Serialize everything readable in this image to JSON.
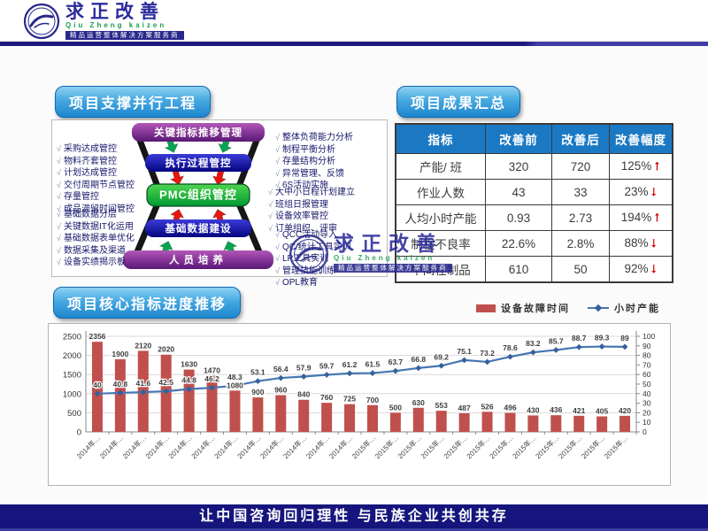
{
  "header": {
    "brand_cn": "求正改善",
    "brand_en": "Qiu Zheng kaizen",
    "tagline": "精品运营整体解决方案服务商"
  },
  "left_panel": {
    "title": "项目支撑并行工程",
    "levels": [
      "关键指标推移管理",
      "执行过程管控",
      "PMC组织管控",
      "基础数据建设",
      "人员培养"
    ],
    "checklists": {
      "top_left": [
        "采购达成管控",
        "物料齐套管控",
        "计划达成管控",
        "交付周期节点管控",
        "存量管控",
        "成品滞留时间管控"
      ],
      "bottom_left": [
        "基础数据分层",
        "关键数据IT化运用",
        "基础数据表单优化",
        "数据采集及渠道",
        "设备实绩揭示板"
      ],
      "right_top": [
        "整体负荷能力分析",
        "制程平衡分析",
        "存量结构分析",
        "异常管理、反馈",
        "6S活动实施"
      ],
      "right_middle": [
        "大中小日程计划建立",
        "班组日报管理",
        "设备效率管控",
        "订单组织、评审"
      ],
      "right_bottom": [
        "QCC活动导入",
        "QC/统计工具实训",
        "LP工具实训",
        "管理技能训练",
        "OPL教育"
      ]
    }
  },
  "right_panel": {
    "title": "项目成果汇总",
    "table": {
      "headers": [
        "指标",
        "改善前",
        "改善后",
        "改善幅度"
      ],
      "rows": [
        {
          "name": "产能/ 班",
          "before": "320",
          "after": "720",
          "delta": "125%",
          "dir": "up"
        },
        {
          "name": "作业人数",
          "before": "43",
          "after": "33",
          "delta": "23%",
          "dir": "down"
        },
        {
          "name": "人均小时产能",
          "before": "0.93",
          "after": "2.73",
          "delta": "194%",
          "dir": "up"
        },
        {
          "name": "制程不良率",
          "before": "22.6%",
          "after": "2.8%",
          "delta": "88%",
          "dir": "down"
        },
        {
          "name": "中间在制品",
          "before": "610",
          "after": "50",
          "delta": "92%",
          "dir": "down"
        }
      ]
    }
  },
  "chart_section": {
    "title": "项目核心指标进度推移",
    "legend": [
      {
        "label": "设备故障时间",
        "type": "bar",
        "color": "#c0504d"
      },
      {
        "label": "小时产能",
        "type": "line",
        "color": "#4677b2"
      }
    ]
  },
  "chart_data": {
    "type": "bar",
    "note": "combo bar+line, bars on left axis, line on right axis",
    "categories": [
      "2014年…",
      "2014年…",
      "2014年…",
      "2014年…",
      "2014年…",
      "2014年…",
      "2014年…",
      "2014年…",
      "2014年…",
      "2014年…",
      "2014年…",
      "2014年…",
      "2015年…",
      "2015年…",
      "2015年…",
      "2015年…",
      "2015年…",
      "2015年…",
      "2015年…",
      "2015年…",
      "2015年…",
      "2015年…",
      "2015年…",
      "2015年…"
    ],
    "series": [
      {
        "name": "设备故障时间",
        "type": "bar",
        "axis": "left",
        "color": "#c0504d",
        "values": [
          2356,
          1900,
          2120,
          2020,
          1630,
          1470,
          1080,
          900,
          960,
          840,
          760,
          725,
          700,
          500,
          630,
          553,
          487,
          526,
          496,
          430,
          436,
          421,
          405,
          420
        ]
      },
      {
        "name": "小时产能",
        "type": "line",
        "axis": "right",
        "color": "#4677b2",
        "values": [
          40,
          40.8,
          41.6,
          42.5,
          44.8,
          46.2,
          48.3,
          53.1,
          56.4,
          57.9,
          59.7,
          61.2,
          61.5,
          63.7,
          66.8,
          69.2,
          75.1,
          73.2,
          78.6,
          83.2,
          85.7,
          88.7,
          89.3,
          89
        ]
      }
    ],
    "left_axis": {
      "min": 0,
      "max": 2500,
      "step": 500
    },
    "right_axis": {
      "min": 0,
      "max": 100,
      "step": 10
    },
    "grid": true,
    "legend_position": "top-right"
  },
  "footer": {
    "slogan": "让中国咨询回归理性  与民族企业共创共存"
  }
}
